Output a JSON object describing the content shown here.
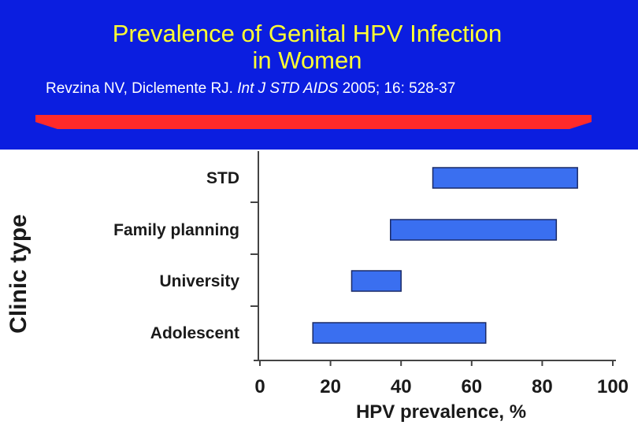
{
  "header": {
    "title_line1": "Prevalence of Genital HPV Infection",
    "title_line2": "in Women",
    "citation_authors": "Revzina NV, Diclemente RJ. ",
    "citation_journal": "Int J STD AIDS",
    "citation_details": " 2005; 16: 528-37"
  },
  "colors": {
    "background_top": "#0b1ee0",
    "title": "#ffff33",
    "rule": "#ff2a2a",
    "bar": "#3a6ff0"
  },
  "chart_data": {
    "type": "bar",
    "orientation": "horizontal-range",
    "title": "",
    "xlabel": "HPV prevalence, %",
    "ylabel": "Clinic type",
    "xlim": [
      0,
      100
    ],
    "xticks": [
      0,
      20,
      40,
      60,
      80,
      100
    ],
    "grid": false,
    "categories": [
      "STD",
      "Family planning",
      "University",
      "Adolescent"
    ],
    "ranges": [
      [
        49,
        90
      ],
      [
        37,
        84
      ],
      [
        26,
        40
      ],
      [
        15,
        64
      ]
    ]
  }
}
